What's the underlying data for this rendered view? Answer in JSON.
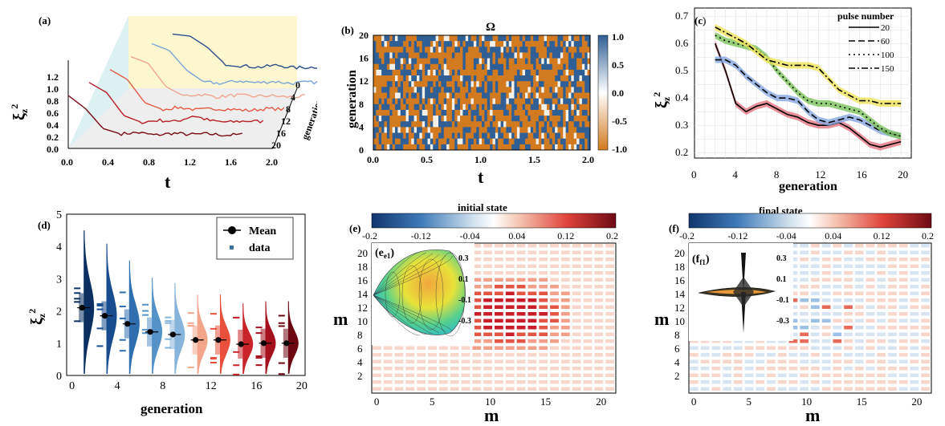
{
  "chart_data": [
    {
      "panel": "(a)",
      "type": "line",
      "xlabel": "t",
      "ylabel": "ξz2",
      "zlabel": "generation",
      "xticks": [
        "0.0",
        "0.4",
        "0.8",
        "1.2",
        "1.6",
        "2.0"
      ],
      "yticks": [
        "0.0",
        "0.2",
        "0.4",
        "0.6",
        "0.8",
        "1.0",
        "1.2"
      ],
      "zticks": [
        "0",
        "4",
        "8",
        "12",
        "16",
        "20"
      ],
      "xlim": [
        0,
        2.0
      ],
      "ylim": [
        0,
        1.2
      ],
      "series": [
        {
          "generation": 0,
          "values": [
            1.0,
            0.97,
            0.8,
            0.55,
            0.52,
            0.5,
            0.53,
            0.49,
            0.5,
            0.52,
            0.5
          ]
        },
        {
          "generation": 4,
          "values": [
            1.0,
            0.9,
            0.6,
            0.42,
            0.4,
            0.44,
            0.41,
            0.43,
            0.4,
            0.42,
            0.41
          ]
        },
        {
          "generation": 8,
          "values": [
            0.95,
            0.85,
            0.5,
            0.36,
            0.38,
            0.34,
            0.37,
            0.35,
            0.36,
            0.34,
            0.35
          ]
        },
        {
          "generation": 12,
          "values": [
            0.9,
            0.75,
            0.4,
            0.3,
            0.33,
            0.29,
            0.31,
            0.3,
            0.28,
            0.31,
            0.3
          ]
        },
        {
          "generation": 16,
          "values": [
            0.85,
            0.7,
            0.35,
            0.25,
            0.28,
            0.26,
            0.35,
            0.27,
            0.25,
            0.27,
            0.26
          ]
        },
        {
          "generation": 20,
          "values": [
            0.8,
            0.6,
            0.3,
            0.22,
            0.24,
            0.2,
            0.23,
            0.21,
            0.22,
            0.2,
            0.21
          ]
        }
      ]
    },
    {
      "panel": "(b)",
      "type": "heatmap",
      "title": "Ω",
      "xlabel": "t",
      "ylabel": "generation",
      "xticks": [
        "0.0",
        "0.5",
        "1.0",
        "1.5",
        "2.0"
      ],
      "yticks": [
        "0",
        "4",
        "8",
        "12",
        "16",
        "20"
      ],
      "colorbar_ticks": [
        "1.0",
        "0.5",
        "0.0",
        "-0.5",
        "-1.0"
      ],
      "colors": {
        "positive": "#2f5f95",
        "negative": "#d27a1f",
        "zero": "#ffffff"
      }
    },
    {
      "panel": "(c)",
      "type": "line",
      "xlabel": "generation",
      "ylabel": "ξz2",
      "xticks": [
        "0",
        "4",
        "8",
        "12",
        "16",
        "20"
      ],
      "yticks": [
        "0.2",
        "0.3",
        "0.4",
        "0.5",
        "0.6",
        "0.7"
      ],
      "xlim": [
        0,
        21
      ],
      "ylim": [
        0.18,
        0.73
      ],
      "legend_title": "pulse number",
      "series": [
        {
          "name": "20",
          "x": [
            2,
            3,
            4,
            5,
            6,
            7,
            8,
            9,
            10,
            11,
            12,
            13,
            14,
            15,
            16,
            17,
            18,
            19,
            20
          ],
          "values": [
            0.6,
            0.5,
            0.38,
            0.35,
            0.37,
            0.38,
            0.36,
            0.34,
            0.33,
            0.31,
            0.3,
            0.3,
            0.31,
            0.29,
            0.26,
            0.23,
            0.22,
            0.23,
            0.24
          ]
        },
        {
          "name": "60",
          "x": [
            2,
            3,
            4,
            5,
            6,
            7,
            8,
            9,
            10,
            11,
            12,
            13,
            14,
            15,
            16,
            17,
            18,
            19,
            20
          ],
          "values": [
            0.54,
            0.54,
            0.52,
            0.48,
            0.45,
            0.42,
            0.4,
            0.4,
            0.39,
            0.35,
            0.32,
            0.31,
            0.32,
            0.33,
            0.32,
            0.3,
            0.28,
            0.27,
            0.26
          ]
        },
        {
          "name": "100",
          "x": [
            2,
            3,
            4,
            5,
            6,
            7,
            8,
            9,
            10,
            11,
            12,
            13,
            14,
            15,
            16,
            17,
            18,
            19,
            20
          ],
          "values": [
            0.63,
            0.61,
            0.6,
            0.59,
            0.58,
            0.55,
            0.5,
            0.46,
            0.42,
            0.39,
            0.38,
            0.38,
            0.37,
            0.36,
            0.35,
            0.32,
            0.29,
            0.27,
            0.26
          ]
        },
        {
          "name": "150",
          "x": [
            2,
            3,
            4,
            5,
            6,
            7,
            8,
            9,
            10,
            11,
            12,
            13,
            14,
            15,
            16,
            17,
            18,
            19,
            20
          ],
          "values": [
            0.66,
            0.64,
            0.62,
            0.6,
            0.57,
            0.54,
            0.53,
            0.52,
            0.52,
            0.52,
            0.51,
            0.47,
            0.43,
            0.41,
            0.39,
            0.39,
            0.38,
            0.38,
            0.38
          ]
        }
      ]
    },
    {
      "panel": "(d)",
      "type": "violin",
      "xlabel": "generation",
      "ylabel": "ξz2",
      "xticks": [
        "0",
        "4",
        "8",
        "12",
        "16",
        "20"
      ],
      "yticks": [
        "0",
        "1",
        "2",
        "3",
        "4",
        "5"
      ],
      "ylim": [
        0,
        5
      ],
      "legend": [
        "Mean",
        "data"
      ],
      "x": [
        1,
        3,
        5,
        7,
        9,
        11,
        13,
        15,
        17,
        19
      ],
      "means": [
        2.1,
        1.85,
        1.6,
        1.35,
        1.27,
        1.1,
        1.1,
        0.97,
        1.0,
        1.0
      ],
      "colors": [
        "#0a2f60",
        "#174d8e",
        "#2f6fb0",
        "#5592c8",
        "#86b4da",
        "#f2a58a",
        "#e8503c",
        "#c9242a",
        "#a4101c",
        "#6e0612"
      ]
    },
    {
      "panel": "(e)",
      "inset_label": "e1",
      "type": "heatmap",
      "title": "initial state",
      "xlabel": "m",
      "ylabel": "m",
      "xticks": [
        "0",
        "5",
        "10",
        "15",
        "20"
      ],
      "yticks": [
        "2",
        "4",
        "6",
        "8",
        "10",
        "12",
        "14",
        "16",
        "18",
        "20"
      ],
      "colorbar_ticks": [
        "-0.2",
        "-0.12",
        "-0.04",
        "0.04",
        "0.12",
        "0.2"
      ],
      "inset_ticks": [
        "0.3",
        "0.1",
        "-0.1",
        "-0.3"
      ]
    },
    {
      "panel": "(f)",
      "inset_label": "f1",
      "type": "heatmap",
      "title": "final state",
      "xlabel": "m",
      "ylabel": "m",
      "xticks": [
        "0",
        "5",
        "10",
        "15",
        "20"
      ],
      "yticks": [
        "2",
        "4",
        "6",
        "8",
        "10",
        "12",
        "14",
        "16",
        "18",
        "20"
      ],
      "colorbar_ticks": [
        "-0.2",
        "-0.12",
        "-0.04",
        "0.04",
        "0.12",
        "0.2"
      ],
      "inset_ticks": [
        "0.3",
        "0.1",
        "-0.1",
        "-0.3"
      ]
    }
  ]
}
